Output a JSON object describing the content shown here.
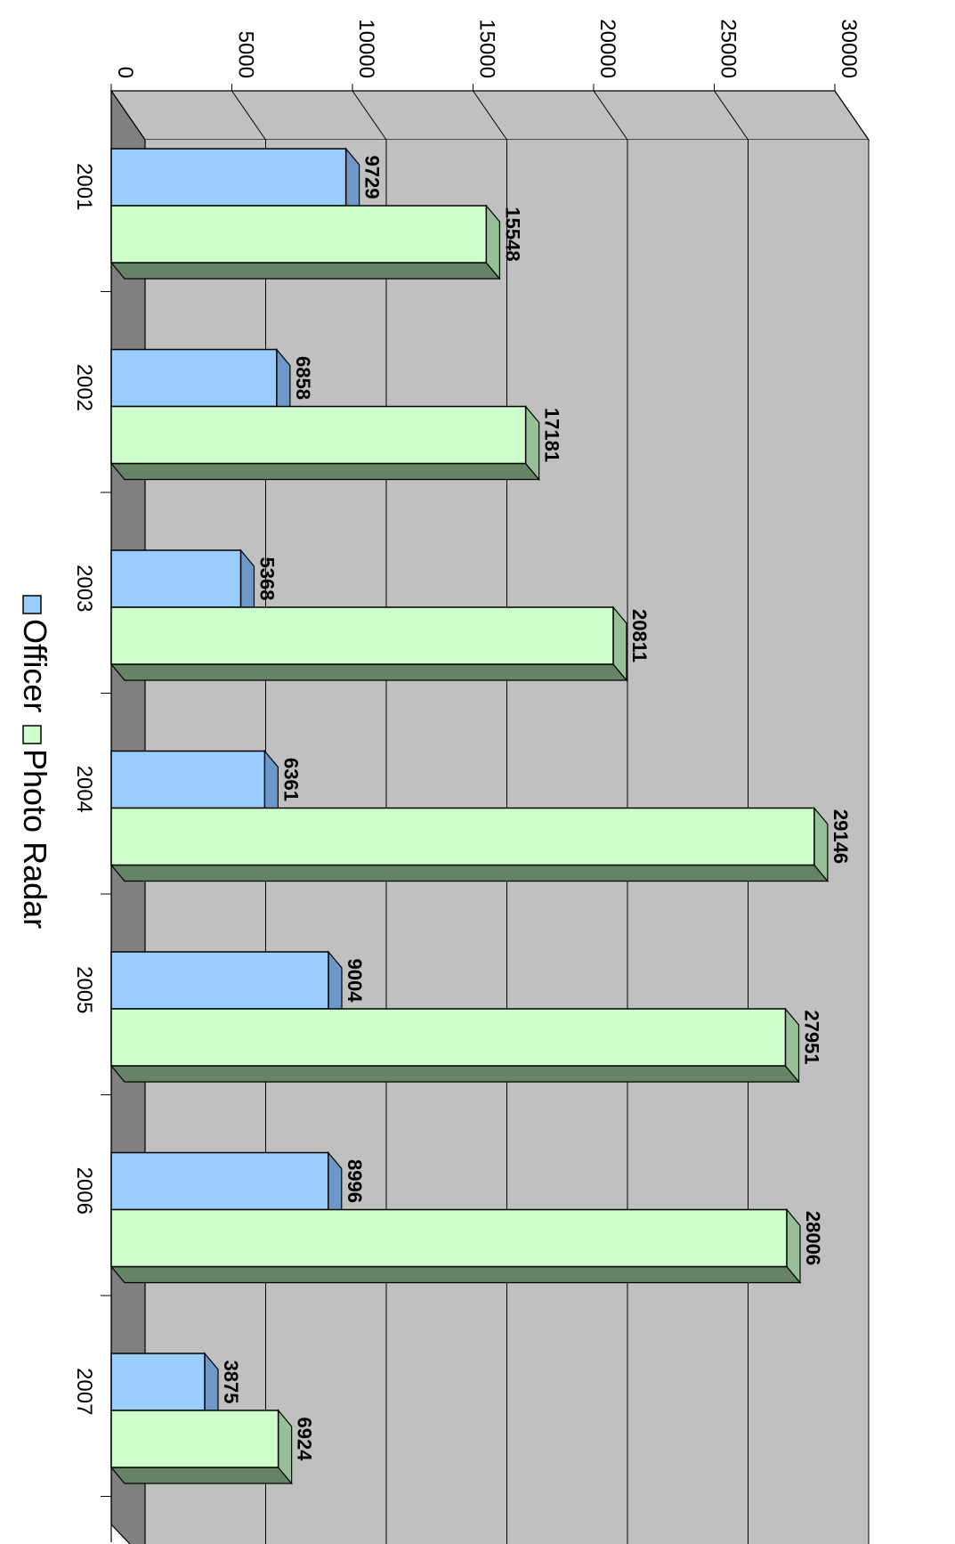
{
  "chart_data": {
    "type": "bar",
    "orientation": "rotated 90 degrees clockwise (3D clustered column)",
    "categories": [
      "2001",
      "2002",
      "2003",
      "2004",
      "2005",
      "2006",
      "2007"
    ],
    "series": [
      {
        "name": "Officer",
        "values": [
          9729,
          6858,
          5368,
          6361,
          9004,
          8996,
          3875
        ],
        "color": "#99ccff",
        "side_color": "#6e98c8"
      },
      {
        "name": "Photo Radar",
        "values": [
          15548,
          17181,
          20811,
          29146,
          27951,
          28006,
          6924
        ],
        "color": "#ccffcc",
        "side_color": "#98c098",
        "bottom_color": "#658465"
      }
    ],
    "value_ticks": [
      "0",
      "5000",
      "10000",
      "15000",
      "20000",
      "25000",
      "30000"
    ],
    "ylim": [
      0,
      30000
    ],
    "title": "",
    "xlabel": "",
    "ylabel": "",
    "grid": true,
    "data_labels": true,
    "legend_position": "left",
    "wall_color": "#c0c0c0",
    "side_wall_color": "#808080"
  }
}
